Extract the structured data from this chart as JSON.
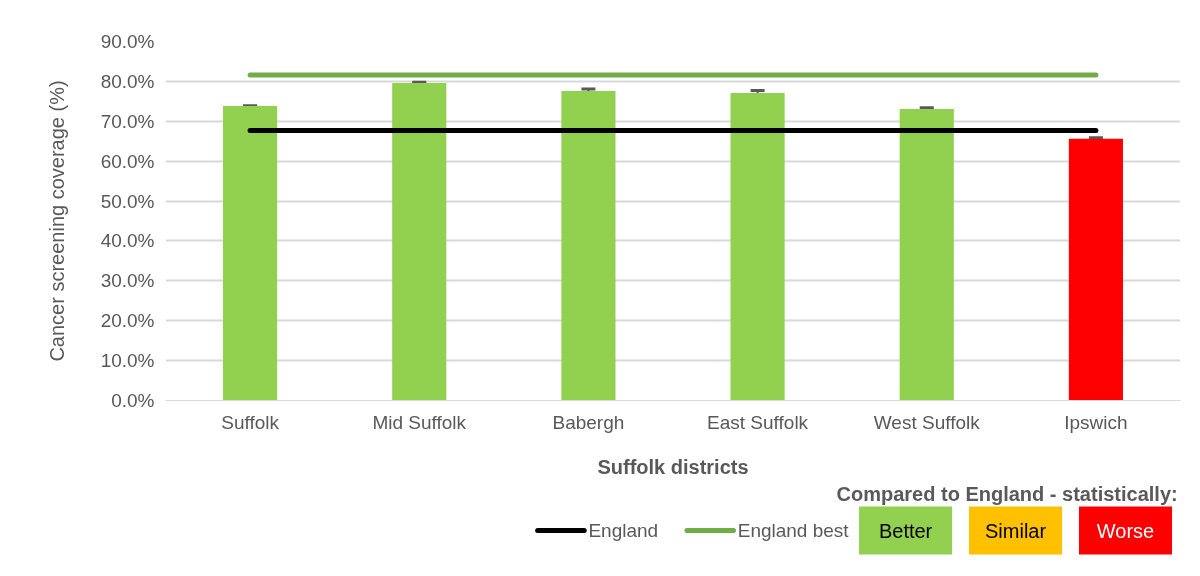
{
  "chart_data": {
    "type": "bar",
    "xlabel": "Suffolk districts",
    "ylabel": "Cancer screening coverage (%)",
    "legend_title": "Compared to England - statistically:",
    "categories": [
      "Suffolk",
      "Mid Suffolk",
      "Babergh",
      "East Suffolk",
      "West Suffolk",
      "Ipswich"
    ],
    "series": [
      {
        "colors": [
          "#92d050",
          "#92d050",
          "#92d050",
          "#92d050",
          "#92d050",
          "#ff0000"
        ],
        "values": [
          73.8,
          79.6,
          77.6,
          77.1,
          73.1,
          65.6
        ],
        "errors": [
          0.1,
          0.2,
          0.5,
          0.6,
          0.3,
          0.3
        ]
      },
      {
        "type": "line",
        "name": "England",
        "color": "#000000",
        "values": [
          67.7,
          67.7,
          67.7,
          67.7,
          67.7,
          67.7
        ]
      },
      {
        "type": "line",
        "name": "England best",
        "color": "#70ad47",
        "values": [
          81.6,
          81.6,
          81.6,
          81.6,
          81.6,
          81.6
        ]
      }
    ],
    "annotations": [
      "Better",
      "Similar",
      "Worse"
    ],
    "ylim": [
      0,
      90
    ],
    "yticks": [
      {
        "value": 0,
        "label": "0.0%"
      },
      {
        "value": 10,
        "label": "10.0%"
      },
      {
        "value": 20,
        "label": "20.0%"
      },
      {
        "value": 30,
        "label": "30.0%"
      },
      {
        "value": 40,
        "label": "40.0%"
      },
      {
        "value": 50,
        "label": "50.0%"
      },
      {
        "value": 60,
        "label": "60.0%"
      },
      {
        "value": 70,
        "label": "70.0%"
      },
      {
        "value": 80,
        "label": "80.0%"
      },
      {
        "value": 90,
        "label": "90.0%"
      }
    ],
    "grid": "y",
    "legend": "bottom"
  }
}
